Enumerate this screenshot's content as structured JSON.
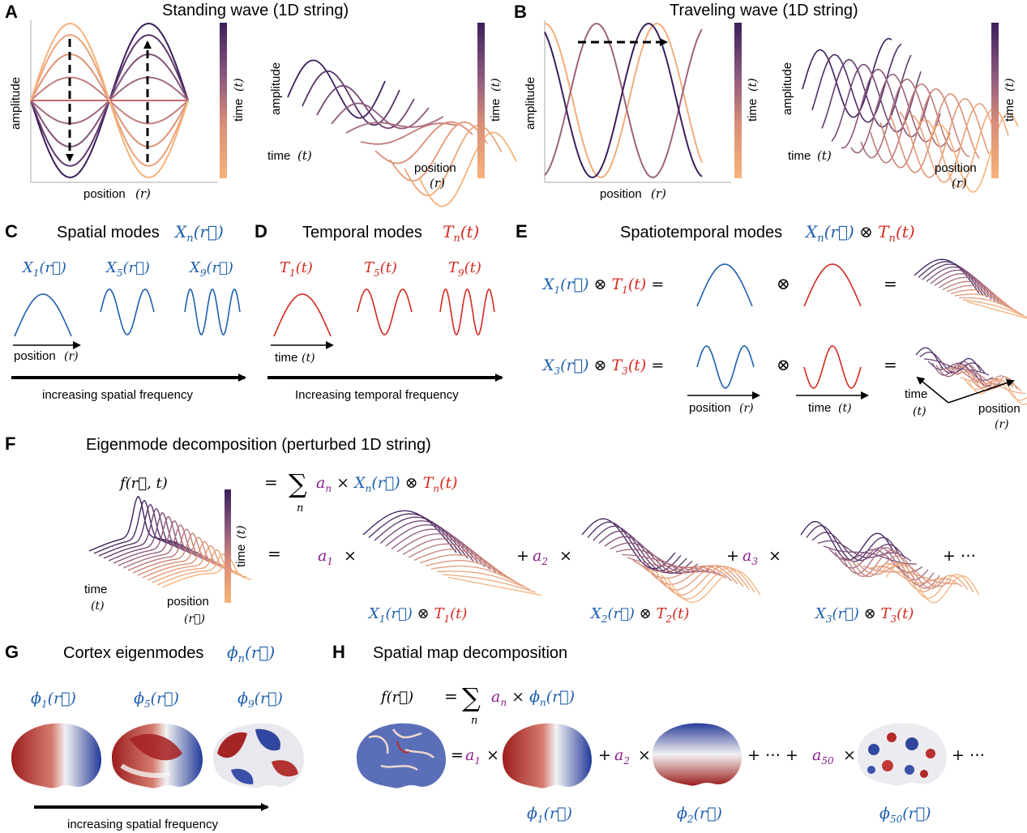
{
  "panels": {
    "A": {
      "letter": "A",
      "title": "Standing wave (1D string)",
      "ylabel": "amplitude",
      "xlabel": "position",
      "xvar": "(r)",
      "time_label": "time",
      "time_var": "(t)",
      "ylabel_3d": "amplitude",
      "xlabel_3d": "position",
      "xvar_3d": "(r)",
      "tlabel_3d": "time",
      "tvar_3d": "(t)"
    },
    "B": {
      "letter": "B",
      "title": "Traveling wave  (1D string)",
      "ylabel": "amplitude",
      "xlabel": "position",
      "xvar": "(r)",
      "time_label": "time",
      "time_var": "(t)",
      "ylabel_3d": "amplitude",
      "xlabel_3d": "position",
      "xvar_3d": "(r)",
      "tlabel_3d": "time",
      "tvar_3d": "(t)"
    },
    "C": {
      "letter": "C",
      "title": "Spatial modes",
      "title_math": "X",
      "title_sub": "n",
      "title_arg": "(r⃗)",
      "modes": [
        {
          "sym": "X",
          "sub": "1",
          "arg": "(r⃗)"
        },
        {
          "sym": "X",
          "sub": "5",
          "arg": "(r⃗)"
        },
        {
          "sym": "X",
          "sub": "9",
          "arg": "(r⃗)"
        }
      ],
      "axis_label": "position",
      "axis_var": "(r)",
      "arrow_label": "increasing spatial frequency"
    },
    "D": {
      "letter": "D",
      "title": "Temporal modes",
      "title_math": "T",
      "title_sub": "n",
      "title_arg": "(t)",
      "modes": [
        {
          "sym": "T",
          "sub": "1",
          "arg": "(t)"
        },
        {
          "sym": "T",
          "sub": "5",
          "arg": "(t)"
        },
        {
          "sym": "T",
          "sub": "9",
          "arg": "(t)"
        }
      ],
      "axis_label": "time",
      "axis_var": "(t)",
      "arrow_label": "Increasing temporal frequency"
    },
    "E": {
      "letter": "E",
      "title": "Spatiotemporal modes",
      "row1": {
        "xs": "X",
        "xsub": "1",
        "ts": "T",
        "tsub": "1"
      },
      "row2": {
        "xs": "X",
        "xsub": "3",
        "ts": "T",
        "tsub": "3"
      },
      "pos_label": "position",
      "pos_var": "(r)",
      "time_label": "time",
      "time_var": "(t)"
    },
    "F": {
      "letter": "F",
      "title": "Eigenmode decomposition  (perturbed 1D string)",
      "lhs": "f(r⃗, t)",
      "sum_index": "n",
      "coef": "a",
      "time_label": "time",
      "time_var": "(t)",
      "pos_label": "position",
      "pos_var": "(r⃗)",
      "terms": [
        "1",
        "2",
        "3"
      ],
      "ellipsis": "+ ⋯"
    },
    "G": {
      "letter": "G",
      "title": "Cortex eigenmodes",
      "modes": [
        "1",
        "5",
        "9"
      ],
      "arrow_label": "increasing spatial frequency"
    },
    "H": {
      "letter": "H",
      "title": "Spatial map decomposition",
      "lhs": "f(r⃗)",
      "terms": [
        "1",
        "2",
        "50"
      ],
      "ellipsis": "+ ⋯"
    }
  },
  "colors": {
    "blue": "#1f5fae",
    "red": "#d42a20",
    "purple": "#8c1f8c",
    "dark_purple": "#3b1f5c",
    "light_orange": "#f6b27a"
  }
}
